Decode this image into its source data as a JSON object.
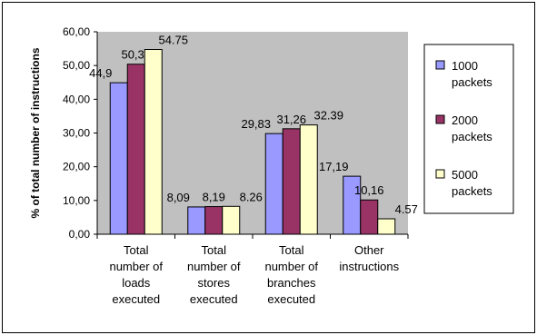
{
  "chart_data": {
    "type": "bar",
    "title": "",
    "xlabel": "",
    "ylabel": "% of total number of instructions",
    "ylim": [
      0,
      60
    ],
    "yticks": [
      "0,00",
      "10,00",
      "20,00",
      "30,00",
      "40,00",
      "50,00",
      "60,00"
    ],
    "categories": [
      [
        "Total",
        "number of",
        "loads",
        "executed"
      ],
      [
        "Total",
        "number of",
        "stores",
        "executed"
      ],
      [
        "Total",
        "number of",
        "branches",
        "executed"
      ],
      [
        "Other",
        "instructions"
      ]
    ],
    "series": [
      {
        "name": "1000 packets",
        "legend_lines": [
          "1000",
          "packets"
        ],
        "color": "#9999ff",
        "values": [
          44.9,
          8.09,
          29.83,
          17.19
        ],
        "labels": [
          "44,9",
          "8,09",
          "29,83",
          "17,19"
        ]
      },
      {
        "name": "2000 packets",
        "legend_lines": [
          "2000",
          "packets"
        ],
        "color": "#993366",
        "values": [
          50.39,
          8.19,
          31.26,
          10.16
        ],
        "labels": [
          "50,39",
          "8,19",
          "31,26",
          "10,16"
        ]
      },
      {
        "name": "5000 packets",
        "legend_lines": [
          "5000",
          "packets"
        ],
        "color": "#ffffcc",
        "values": [
          54.75,
          8.26,
          32.39,
          4.57
        ],
        "labels": [
          "54.75",
          "8.26",
          "32.39",
          "4.57"
        ]
      }
    ],
    "plot_background": "#c0c0c0",
    "grid": false,
    "legend": "right"
  }
}
